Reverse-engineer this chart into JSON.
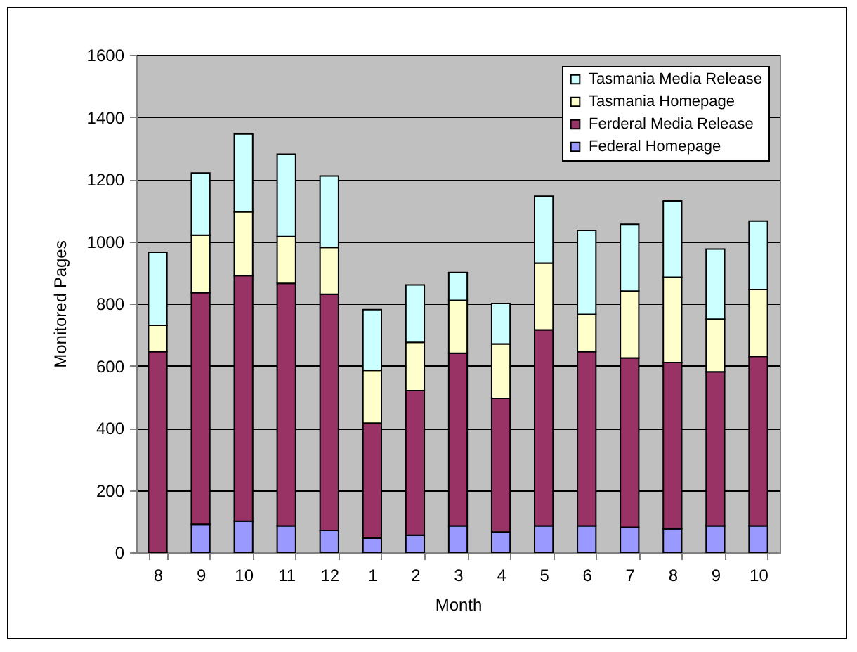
{
  "chart_data": {
    "type": "bar",
    "stacked": true,
    "xlabel": "Month",
    "ylabel": "Monitored Pages",
    "categories": [
      "8",
      "9",
      "10",
      "11",
      "12",
      "1",
      "2",
      "3",
      "4",
      "5",
      "6",
      "7",
      "8",
      "9",
      "10"
    ],
    "series": [
      {
        "name": "Federal Homepage",
        "color": "#9999ff",
        "values": [
          0,
          90,
          100,
          85,
          70,
          45,
          55,
          85,
          65,
          85,
          85,
          80,
          75,
          85,
          85
        ]
      },
      {
        "name": "Ferderal Media Release",
        "color": "#993366",
        "values": [
          645,
          745,
          790,
          780,
          760,
          370,
          465,
          555,
          430,
          630,
          560,
          545,
          535,
          495,
          545
        ]
      },
      {
        "name": "Tasmania Homepage",
        "color": "#ffffcc",
        "values": [
          85,
          185,
          205,
          150,
          150,
          170,
          155,
          170,
          175,
          215,
          120,
          215,
          275,
          170,
          215
        ]
      },
      {
        "name": "Tasmania Media Release",
        "color": "#ccffff",
        "values": [
          235,
          200,
          250,
          265,
          230,
          195,
          185,
          90,
          130,
          215,
          270,
          215,
          245,
          225,
          220
        ]
      }
    ],
    "ylim": [
      0,
      1600
    ],
    "yticks": [
      0,
      200,
      400,
      600,
      800,
      1000,
      1200,
      1400,
      1600
    ],
    "grid": "y",
    "legend": "top right"
  }
}
